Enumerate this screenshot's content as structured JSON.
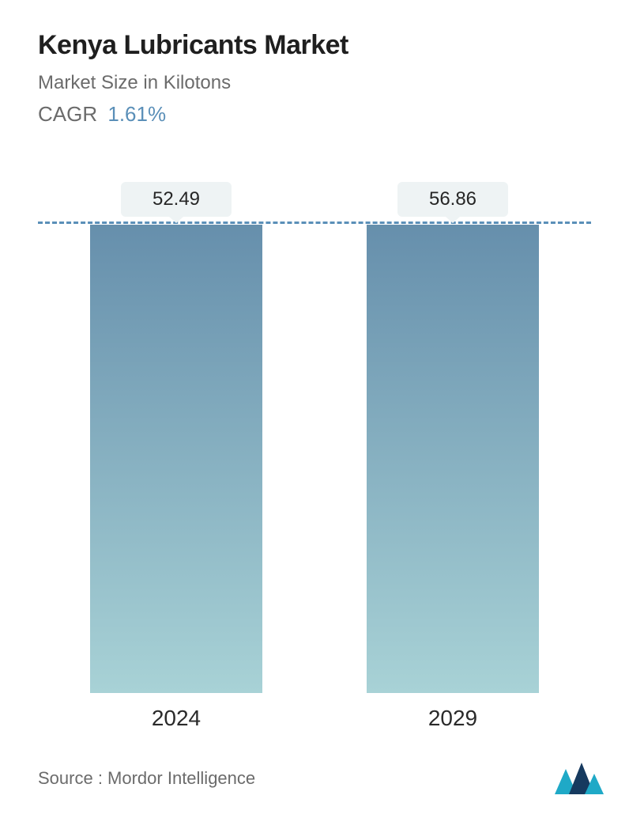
{
  "header": {
    "title": "Kenya Lubricants Market",
    "subtitle": "Market Size in Kilotons",
    "cagr_label": "CAGR",
    "cagr_value": "1.61%",
    "title_color": "#1f1f1f",
    "subtitle_color": "#6b6b6b",
    "cagr_value_color": "#5a8fb8",
    "title_fontsize": 34,
    "subtitle_fontsize": 24,
    "cagr_fontsize": 26
  },
  "chart": {
    "type": "bar",
    "categories": [
      "2024",
      "2029"
    ],
    "values": [
      52.49,
      56.86
    ],
    "value_labels": [
      "52.49",
      "56.86"
    ],
    "reference_value": 52.49,
    "ylim_max": 56.86,
    "bar_gradient_top": "#668fac",
    "bar_gradient_bottom": "#a8d2d6",
    "dashed_line_color": "#5a8fb8",
    "value_pill_bg": "#eef3f4",
    "value_pill_text": "#262626",
    "value_fontsize": 24,
    "xlabel_fontsize": 28,
    "xlabel_color": "#2a2a2a",
    "background_color": "#ffffff",
    "bar_width_ratio": 0.78
  },
  "footer": {
    "source_text": "Source :  Mordor Intelligence",
    "source_color": "#6b6b6b",
    "source_fontsize": 22,
    "logo_colors": {
      "navy": "#163a5f",
      "teal": "#1fa9c7"
    }
  }
}
